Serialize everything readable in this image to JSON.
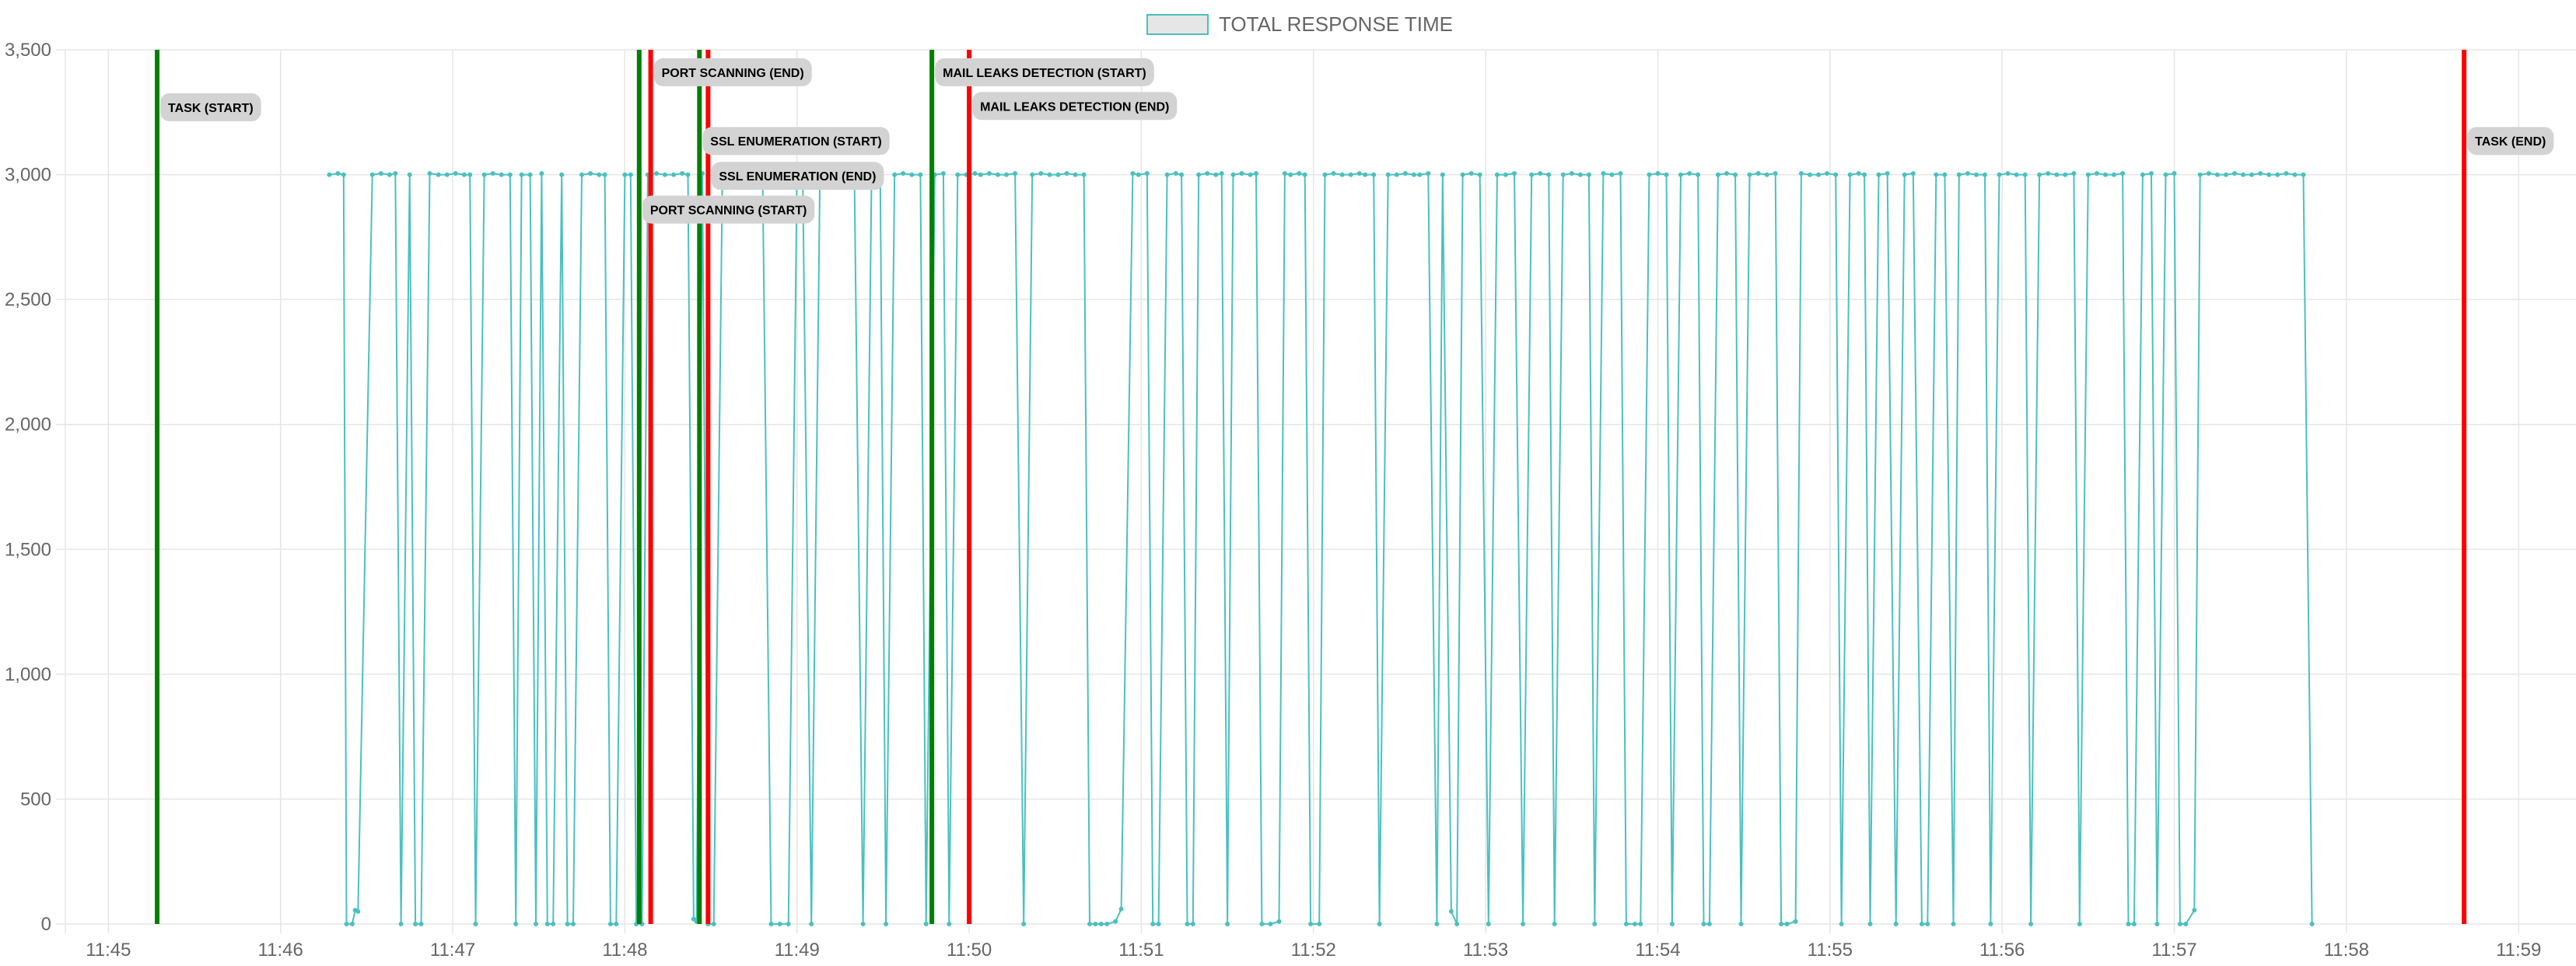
{
  "chart_data": {
    "type": "line",
    "legend": {
      "label": "TOTAL RESPONSE TIME",
      "position": "top",
      "color": "#4bc0c0",
      "fill": "#e6e6e6"
    },
    "x_ticks": [
      "11:45",
      "11:46",
      "11:47",
      "11:48",
      "11:49",
      "11:50",
      "11:51",
      "11:52",
      "11:53",
      "11:54",
      "11:55",
      "11:56",
      "11:57",
      "11:58",
      "11:59"
    ],
    "xlim": [
      "11:44:45",
      "11:59:20"
    ],
    "ylim": [
      0,
      3500
    ],
    "y_ticks": [
      0,
      500,
      1000,
      1500,
      2000,
      2500,
      3000,
      3500
    ],
    "y_tick_labels": [
      "0",
      "500",
      "1,000",
      "1,500",
      "2,000",
      "2,500",
      "3,000",
      "3,500"
    ],
    "grid": true,
    "colors": {
      "series": "#4bc0c0",
      "start_line": "#008000",
      "end_line": "#ff0000",
      "grid": "#e5e5e5",
      "label_bg": "#d3d3d3"
    },
    "series": [
      {
        "values": [
          [
            "11:46:17",
            3000
          ],
          [
            "11:46:20",
            3005
          ],
          [
            "11:46:22",
            3000
          ],
          [
            "11:46:23",
            0
          ],
          [
            "11:46:25",
            0
          ],
          [
            "11:46:26",
            55
          ],
          [
            "11:46:27",
            50
          ],
          [
            "11:46:32",
            3000
          ],
          [
            "11:46:35",
            3005
          ],
          [
            "11:46:38",
            3000
          ],
          [
            "11:46:40",
            3005
          ],
          [
            "11:46:42",
            0
          ],
          [
            "11:46:45",
            3000
          ],
          [
            "11:46:47",
            0
          ],
          [
            "11:46:49",
            0
          ],
          [
            "11:46:52",
            3005
          ],
          [
            "11:46:55",
            3000
          ],
          [
            "11:46:58",
            3000
          ],
          [
            "11:47:01",
            3005
          ],
          [
            "11:47:04",
            3000
          ],
          [
            "11:47:06",
            3000
          ],
          [
            "11:47:08",
            0
          ],
          [
            "11:47:11",
            3000
          ],
          [
            "11:47:14",
            3005
          ],
          [
            "11:47:17",
            3000
          ],
          [
            "11:47:20",
            3000
          ],
          [
            "11:47:22",
            0
          ],
          [
            "11:47:24",
            3000
          ],
          [
            "11:47:27",
            3000
          ],
          [
            "11:47:29",
            0
          ],
          [
            "11:47:31",
            3005
          ],
          [
            "11:47:33",
            0
          ],
          [
            "11:47:35",
            0
          ],
          [
            "11:47:38",
            3000
          ],
          [
            "11:47:40",
            0
          ],
          [
            "11:47:42",
            0
          ],
          [
            "11:47:45",
            3000
          ],
          [
            "11:47:48",
            3005
          ],
          [
            "11:47:51",
            3000
          ],
          [
            "11:47:53",
            3000
          ],
          [
            "11:47:55",
            0
          ],
          [
            "11:47:57",
            0
          ],
          [
            "11:48:00",
            3000
          ],
          [
            "11:48:02",
            3000
          ],
          [
            "11:48:04",
            0
          ],
          [
            "11:48:06",
            0
          ],
          [
            "11:48:08",
            3000
          ],
          [
            "11:48:11",
            3005
          ],
          [
            "11:48:14",
            3000
          ],
          [
            "11:48:17",
            3000
          ],
          [
            "11:48:20",
            3005
          ],
          [
            "11:48:22",
            3000
          ],
          [
            "11:48:24",
            20
          ],
          [
            "11:48:25",
            10
          ],
          [
            "11:48:27",
            3005
          ],
          [
            "11:48:29",
            0
          ],
          [
            "11:48:31",
            0
          ],
          [
            "11:48:34",
            3000
          ],
          [
            "11:48:37",
            3005
          ],
          [
            "11:48:40",
            3000
          ],
          [
            "11:48:43",
            3000
          ],
          [
            "11:48:46",
            3005
          ],
          [
            "11:48:48",
            3000
          ],
          [
            "11:48:51",
            0
          ],
          [
            "11:48:54",
            0
          ],
          [
            "11:48:57",
            0
          ],
          [
            "11:49:00",
            3000
          ],
          [
            "11:49:02",
            3000
          ],
          [
            "11:49:05",
            0
          ],
          [
            "11:49:08",
            3000
          ],
          [
            "11:49:11",
            3000
          ],
          [
            "11:49:14",
            3005
          ],
          [
            "11:49:17",
            3000
          ],
          [
            "11:49:20",
            3000
          ],
          [
            "11:49:23",
            0
          ],
          [
            "11:49:26",
            3000
          ],
          [
            "11:49:29",
            3005
          ],
          [
            "11:49:31",
            0
          ],
          [
            "11:49:34",
            3000
          ],
          [
            "11:49:37",
            3005
          ],
          [
            "11:49:40",
            3000
          ],
          [
            "11:49:43",
            3000
          ],
          [
            "11:49:45",
            0
          ],
          [
            "11:49:48",
            3000
          ],
          [
            "11:49:51",
            3005
          ],
          [
            "11:49:53",
            0
          ],
          [
            "11:49:56",
            3000
          ],
          [
            "11:49:59",
            3000
          ],
          [
            "11:50:02",
            3005
          ],
          [
            "11:50:04",
            3000
          ],
          [
            "11:50:07",
            3005
          ],
          [
            "11:50:10",
            3000
          ],
          [
            "11:50:13",
            3000
          ],
          [
            "11:50:16",
            3005
          ],
          [
            "11:50:19",
            0
          ],
          [
            "11:50:22",
            3000
          ],
          [
            "11:50:25",
            3005
          ],
          [
            "11:50:28",
            3000
          ],
          [
            "11:50:31",
            3000
          ],
          [
            "11:50:34",
            3005
          ],
          [
            "11:50:37",
            3000
          ],
          [
            "11:50:40",
            3000
          ],
          [
            "11:50:42",
            0
          ],
          [
            "11:50:44",
            0
          ],
          [
            "11:50:46",
            0
          ],
          [
            "11:50:48",
            0
          ],
          [
            "11:50:51",
            10
          ],
          [
            "11:50:53",
            60
          ],
          [
            "11:50:57",
            3005
          ],
          [
            "11:50:59",
            3000
          ],
          [
            "11:51:02",
            3005
          ],
          [
            "11:51:04",
            0
          ],
          [
            "11:51:06",
            0
          ],
          [
            "11:51:09",
            3000
          ],
          [
            "11:51:12",
            3005
          ],
          [
            "11:51:14",
            3000
          ],
          [
            "11:51:16",
            0
          ],
          [
            "11:51:18",
            0
          ],
          [
            "11:51:20",
            3000
          ],
          [
            "11:51:23",
            3005
          ],
          [
            "11:51:26",
            3000
          ],
          [
            "11:51:28",
            3005
          ],
          [
            "11:51:30",
            0
          ],
          [
            "11:51:32",
            3000
          ],
          [
            "11:51:35",
            3005
          ],
          [
            "11:51:38",
            3000
          ],
          [
            "11:51:40",
            3005
          ],
          [
            "11:51:42",
            0
          ],
          [
            "11:51:45",
            0
          ],
          [
            "11:51:48",
            10
          ],
          [
            "11:51:50",
            3005
          ],
          [
            "11:51:52",
            3000
          ],
          [
            "11:51:55",
            3005
          ],
          [
            "11:51:57",
            3000
          ],
          [
            "11:51:59",
            0
          ],
          [
            "11:52:02",
            0
          ],
          [
            "11:52:04",
            3000
          ],
          [
            "11:52:07",
            3005
          ],
          [
            "11:52:10",
            3000
          ],
          [
            "11:52:13",
            3000
          ],
          [
            "11:52:16",
            3005
          ],
          [
            "11:52:18",
            3000
          ],
          [
            "11:52:21",
            3000
          ],
          [
            "11:52:23",
            0
          ],
          [
            "11:52:26",
            3000
          ],
          [
            "11:52:29",
            3000
          ],
          [
            "11:52:32",
            3005
          ],
          [
            "11:52:35",
            3000
          ],
          [
            "11:52:37",
            3000
          ],
          [
            "11:52:40",
            3005
          ],
          [
            "11:52:43",
            0
          ],
          [
            "11:52:45",
            3000
          ],
          [
            "11:52:48",
            50
          ],
          [
            "11:52:50",
            0
          ],
          [
            "11:52:52",
            3000
          ],
          [
            "11:52:55",
            3005
          ],
          [
            "11:52:58",
            3000
          ],
          [
            "11:53:01",
            0
          ],
          [
            "11:53:04",
            3000
          ],
          [
            "11:53:07",
            3000
          ],
          [
            "11:53:10",
            3005
          ],
          [
            "11:53:13",
            0
          ],
          [
            "11:53:16",
            3000
          ],
          [
            "11:53:19",
            3005
          ],
          [
            "11:53:22",
            3000
          ],
          [
            "11:53:24",
            0
          ],
          [
            "11:53:27",
            3000
          ],
          [
            "11:53:30",
            3005
          ],
          [
            "11:53:33",
            3000
          ],
          [
            "11:53:36",
            3000
          ],
          [
            "11:53:38",
            0
          ],
          [
            "11:53:41",
            3005
          ],
          [
            "11:53:44",
            3000
          ],
          [
            "11:53:47",
            3005
          ],
          [
            "11:53:49",
            0
          ],
          [
            "11:53:52",
            0
          ],
          [
            "11:53:54",
            0
          ],
          [
            "11:53:57",
            3000
          ],
          [
            "11:54:00",
            3005
          ],
          [
            "11:54:03",
            3000
          ],
          [
            "11:54:05",
            0
          ],
          [
            "11:54:08",
            3000
          ],
          [
            "11:54:11",
            3005
          ],
          [
            "11:54:14",
            3000
          ],
          [
            "11:54:16",
            0
          ],
          [
            "11:54:18",
            0
          ],
          [
            "11:54:21",
            3000
          ],
          [
            "11:54:24",
            3005
          ],
          [
            "11:54:27",
            3000
          ],
          [
            "11:54:29",
            0
          ],
          [
            "11:54:32",
            3000
          ],
          [
            "11:54:35",
            3005
          ],
          [
            "11:54:38",
            3000
          ],
          [
            "11:54:41",
            3005
          ],
          [
            "11:54:43",
            0
          ],
          [
            "11:54:45",
            0
          ],
          [
            "11:54:48",
            10
          ],
          [
            "11:54:50",
            3005
          ],
          [
            "11:54:53",
            3000
          ],
          [
            "11:54:56",
            3000
          ],
          [
            "11:54:59",
            3005
          ],
          [
            "11:55:02",
            3000
          ],
          [
            "11:55:04",
            0
          ],
          [
            "11:55:07",
            3000
          ],
          [
            "11:55:10",
            3005
          ],
          [
            "11:55:12",
            3000
          ],
          [
            "11:55:14",
            0
          ],
          [
            "11:55:17",
            3000
          ],
          [
            "11:55:20",
            3005
          ],
          [
            "11:55:23",
            0
          ],
          [
            "11:55:26",
            3000
          ],
          [
            "11:55:29",
            3005
          ],
          [
            "11:55:32",
            0
          ],
          [
            "11:55:34",
            0
          ],
          [
            "11:55:37",
            3000
          ],
          [
            "11:55:40",
            3000
          ],
          [
            "11:55:43",
            0
          ],
          [
            "11:55:45",
            3000
          ],
          [
            "11:55:48",
            3005
          ],
          [
            "11:55:51",
            3000
          ],
          [
            "11:55:54",
            3000
          ],
          [
            "11:55:56",
            0
          ],
          [
            "11:55:59",
            3000
          ],
          [
            "11:56:02",
            3005
          ],
          [
            "11:56:05",
            3000
          ],
          [
            "11:56:08",
            3000
          ],
          [
            "11:56:10",
            0
          ],
          [
            "11:56:13",
            3000
          ],
          [
            "11:56:16",
            3005
          ],
          [
            "11:56:19",
            3000
          ],
          [
            "11:56:22",
            3000
          ],
          [
            "11:56:25",
            3005
          ],
          [
            "11:56:27",
            0
          ],
          [
            "11:56:30",
            3000
          ],
          [
            "11:56:33",
            3005
          ],
          [
            "11:56:36",
            3000
          ],
          [
            "11:56:39",
            3000
          ],
          [
            "11:56:42",
            3005
          ],
          [
            "11:56:44",
            0
          ],
          [
            "11:56:46",
            0
          ],
          [
            "11:56:49",
            3000
          ],
          [
            "11:56:52",
            3005
          ],
          [
            "11:56:54",
            0
          ],
          [
            "11:56:57",
            3000
          ],
          [
            "11:57:00",
            3005
          ],
          [
            "11:57:02",
            0
          ],
          [
            "11:57:04",
            0
          ],
          [
            "11:57:07",
            55
          ],
          [
            "11:57:09",
            3000
          ],
          [
            "11:57:12",
            3005
          ],
          [
            "11:57:15",
            3000
          ],
          [
            "11:57:18",
            3000
          ],
          [
            "11:57:21",
            3005
          ],
          [
            "11:57:24",
            3000
          ],
          [
            "11:57:27",
            3000
          ],
          [
            "11:57:30",
            3005
          ],
          [
            "11:57:33",
            3000
          ],
          [
            "11:57:36",
            3000
          ],
          [
            "11:57:39",
            3005
          ],
          [
            "11:57:42",
            3000
          ],
          [
            "11:57:45",
            3000
          ],
          [
            "11:57:48",
            0
          ]
        ]
      }
    ],
    "annotations": [
      {
        "time": "11:45:17",
        "kind": "start",
        "label": "TASK (START)",
        "label_y": 3270
      },
      {
        "time": "11:48:05",
        "kind": "start",
        "label": "PORT SCANNING (START)",
        "label_y": 2860
      },
      {
        "time": "11:48:09",
        "kind": "end",
        "label": "PORT SCANNING (END)",
        "label_y": 3410
      },
      {
        "time": "11:48:26",
        "kind": "start",
        "label": "SSL ENUMERATION (START)",
        "label_y": 3135
      },
      {
        "time": "11:48:29",
        "kind": "end",
        "label": "SSL ENUMERATION (END)",
        "label_y": 2995
      },
      {
        "time": "11:49:47",
        "kind": "start",
        "label": "MAIL LEAKS DETECTION (START)",
        "label_y": 3410
      },
      {
        "time": "11:50:00",
        "kind": "end",
        "label": "MAIL LEAKS DETECTION (END)",
        "label_y": 3275
      },
      {
        "time": "11:58:41",
        "kind": "end",
        "label": "TASK (END)",
        "label_y": 3135
      }
    ]
  }
}
